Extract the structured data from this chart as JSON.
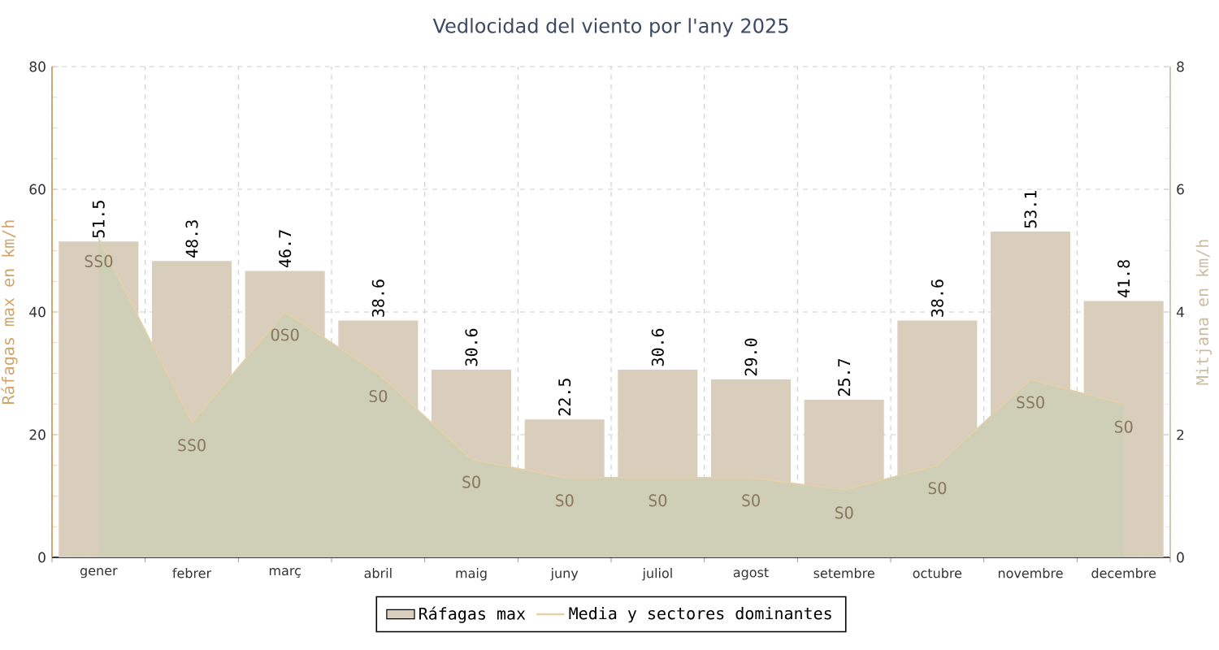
{
  "chart_data": {
    "type": "bar",
    "title": "Vedlocidad del viento por l'any 2025",
    "ylabel": "Ráfagas max en km/h",
    "y2label": "Mitjana en km/h",
    "categories": [
      "gener",
      "febrer",
      "març",
      "abril",
      "maig",
      "juny",
      "juliol",
      "agost",
      "setembre",
      "octubre",
      "novembre",
      "decembre"
    ],
    "series": [
      {
        "name": "Ráfagas max",
        "color": "#d9cdbb",
        "values": [
          51.5,
          48.3,
          46.7,
          38.6,
          30.6,
          22.5,
          30.6,
          29.0,
          25.7,
          38.6,
          53.1,
          41.8
        ],
        "value_labels": [
          "51.5",
          "48.3",
          "46.7",
          "38.6",
          "30.6",
          "22.5",
          "30.6",
          "29.0",
          "25.7",
          "38.6",
          "53.1",
          "41.8"
        ]
      },
      {
        "name": "Media y sectores dominantes",
        "type": "area",
        "axis": "y2",
        "color": "#e5d0a8",
        "values": [
          5.2,
          2.2,
          4.0,
          3.0,
          1.6,
          1.3,
          1.3,
          1.3,
          1.1,
          1.5,
          2.9,
          2.5
        ],
        "value_labels": [
          "SSO",
          "SSO",
          "OSO",
          "SO",
          "SO",
          "SO",
          "SO",
          "SO",
          "SO",
          "SO",
          "SSO",
          "SO"
        ]
      }
    ],
    "ylim": [
      0,
      80
    ],
    "yticks": [
      0,
      20,
      40,
      60,
      80
    ],
    "y2lim": [
      0,
      8
    ],
    "y2ticks": [
      0,
      2,
      4,
      6,
      8
    ],
    "grid": true,
    "legend": "bottom"
  }
}
